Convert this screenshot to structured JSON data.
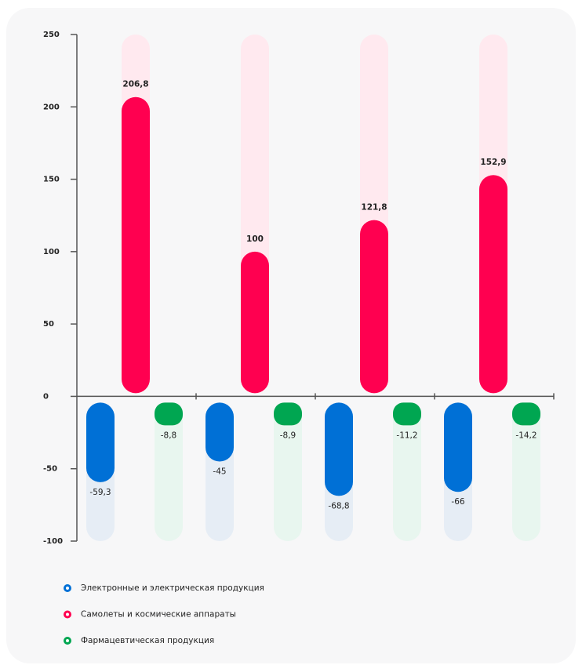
{
  "chart_data": {
    "type": "bar",
    "categories": [
      null,
      null,
      null,
      null
    ],
    "series": [
      {
        "name": "Электронные и электрическая продукция",
        "color": "#0070d6",
        "track": "#e6edf5",
        "values": [
          -59.3,
          -45,
          -68.8,
          -66
        ],
        "value_labels": [
          "-59,3",
          "-45",
          "-68,8",
          "-66"
        ]
      },
      {
        "name": "Самолеты и космические аппараты",
        "color": "#ff0050",
        "track": "#ffe9ef",
        "values": [
          206.8,
          100,
          121.8,
          152.9
        ],
        "value_labels": [
          "206,8",
          "100",
          "121,8",
          "152,9"
        ]
      },
      {
        "name": "Фармацевтическая продукция",
        "color": "#00a651",
        "track": "#e8f6ef",
        "values": [
          -8.8,
          -8.9,
          -11.2,
          -14.2
        ],
        "value_labels": [
          "-8,8",
          "-8,9",
          "-11,2",
          "-14,2"
        ]
      }
    ],
    "ylim": [
      -100,
      250
    ],
    "yticks": [
      -100,
      -50,
      0,
      50,
      100,
      150,
      200,
      250
    ]
  }
}
